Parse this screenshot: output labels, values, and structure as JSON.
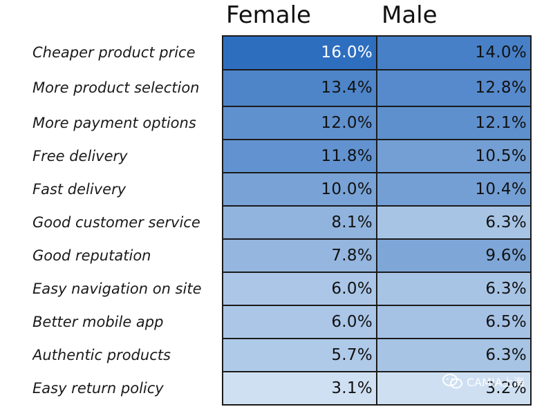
{
  "chart_data": {
    "type": "table",
    "columns": [
      "Female",
      "Male"
    ],
    "rows": [
      {
        "label": "Cheaper product price",
        "values": [
          16.0,
          14.0
        ],
        "display": [
          "16.0%",
          "14.0%"
        ]
      },
      {
        "label": "More product selection",
        "values": [
          13.4,
          12.8
        ],
        "display": [
          "13.4%",
          "12.8%"
        ]
      },
      {
        "label": "More payment options",
        "values": [
          12.0,
          12.1
        ],
        "display": [
          "12.0%",
          "12.1%"
        ]
      },
      {
        "label": "Free delivery",
        "values": [
          11.8,
          10.5
        ],
        "display": [
          "11.8%",
          "10.5%"
        ]
      },
      {
        "label": "Fast delivery",
        "values": [
          10.0,
          10.4
        ],
        "display": [
          "10.0%",
          "10.4%"
        ]
      },
      {
        "label": "Good customer service",
        "values": [
          8.1,
          6.3
        ],
        "display": [
          "8.1%",
          "6.3%"
        ]
      },
      {
        "label": "Good reputation",
        "values": [
          7.8,
          9.6
        ],
        "display": [
          "7.8%",
          "9.6%"
        ]
      },
      {
        "label": "Easy navigation on site",
        "values": [
          6.0,
          6.3
        ],
        "display": [
          "6.0%",
          "6.3%"
        ]
      },
      {
        "label": "Better mobile app",
        "values": [
          6.0,
          6.5
        ],
        "display": [
          "6.0%",
          "6.5%"
        ]
      },
      {
        "label": "Authentic products",
        "values": [
          5.7,
          6.3
        ],
        "display": [
          "5.7%",
          "6.3%"
        ]
      },
      {
        "label": "Easy return policy",
        "values": [
          3.1,
          3.2
        ],
        "display": [
          "3.1%",
          "3.2%"
        ]
      }
    ],
    "color_scale": {
      "low": "#cfe0f2",
      "high": "#2e6ebf",
      "text_light": "#ffffff",
      "text_dark": "#111111"
    }
  },
  "watermark": {
    "text": "CAMIA上海",
    "icon": "wechat-icon"
  }
}
